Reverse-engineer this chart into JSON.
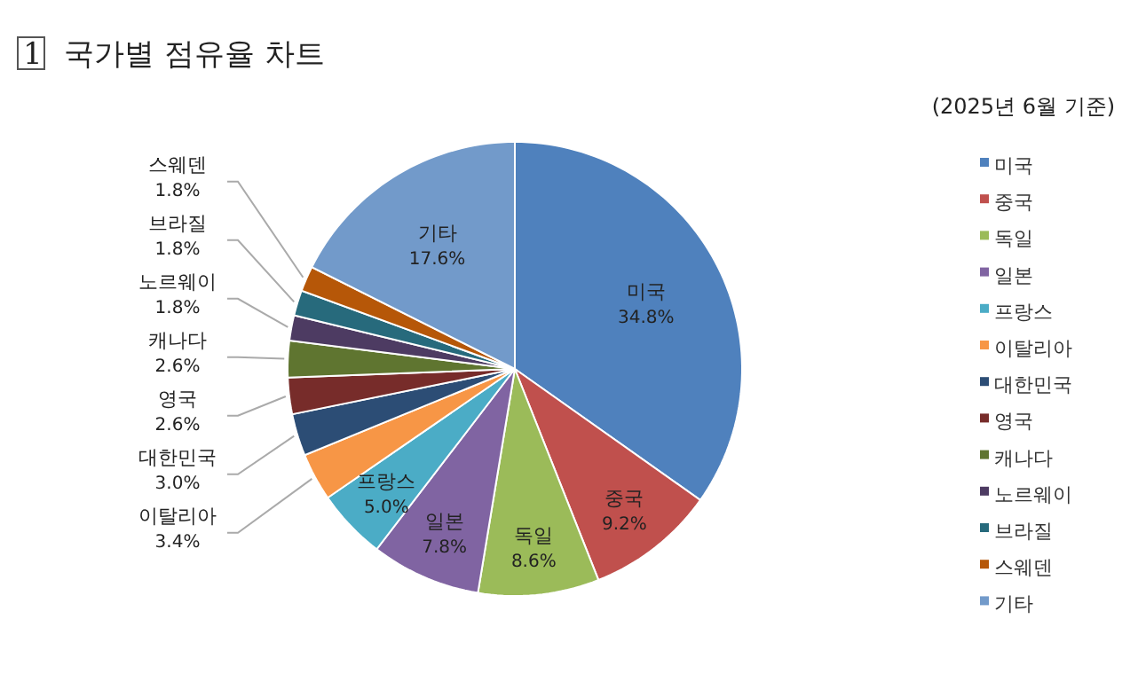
{
  "chart_data": {
    "type": "pie",
    "title": "1 국가별 점유율 차트",
    "subtitle": "(2025년 6월 기준)",
    "categories": [
      "미국",
      "중국",
      "독일",
      "일본",
      "프랑스",
      "이탈리아",
      "대한민국",
      "영국",
      "캐나다",
      "노르웨이",
      "브라질",
      "스웨덴",
      "기타"
    ],
    "values": [
      34.8,
      9.2,
      8.6,
      7.8,
      5.0,
      3.4,
      3.0,
      2.6,
      2.6,
      1.8,
      1.8,
      1.8,
      17.6
    ],
    "colors": [
      "#4f81bd",
      "#c0504d",
      "#9bbb59",
      "#8064a2",
      "#4bacc6",
      "#f79646",
      "#2c4d75",
      "#772c2a",
      "#5f7530",
      "#4d3b62",
      "#276a7c",
      "#b65708",
      "#729aca"
    ],
    "value_labels": [
      "34.8%",
      "9.2%",
      "8.6%",
      "7.8%",
      "5.0%",
      "3.4%",
      "3.0%",
      "2.6%",
      "2.6%",
      "1.8%",
      "1.8%",
      "1.8%",
      "17.6%"
    ],
    "data_labels": true,
    "legend": "right"
  }
}
